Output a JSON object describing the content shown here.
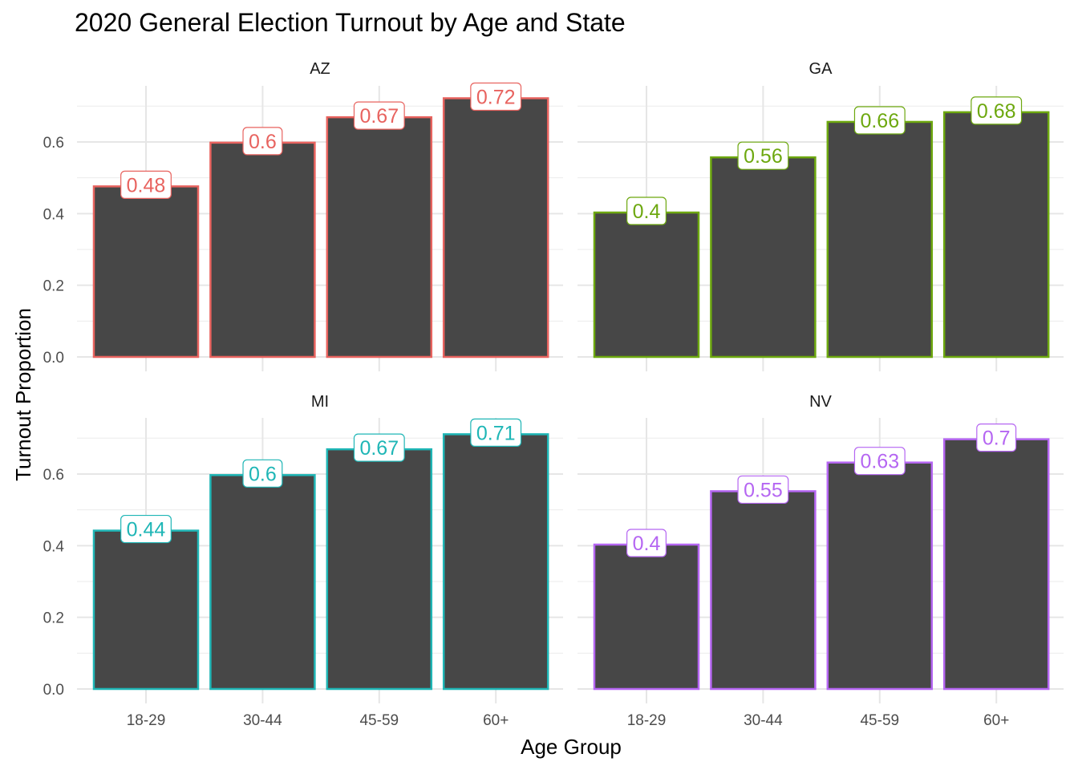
{
  "chart_data": {
    "type": "bar",
    "title": "2020 General Election Turnout by Age and State",
    "xlabel": "Age Group",
    "ylabel": "Turnout Proportion",
    "categories": [
      "18-29",
      "30-44",
      "45-59",
      "60+"
    ],
    "ylim": [
      0,
      0.75
    ],
    "y_ticks": [
      "0.0",
      "0.2",
      "0.4",
      "0.6"
    ],
    "y_tick_values": [
      0,
      0.2,
      0.4,
      0.6
    ],
    "grid": true,
    "legend": "none",
    "bar_fill": "#474747",
    "panels": [
      {
        "name": "AZ",
        "color": "#E8635F",
        "values": [
          0.476,
          0.598,
          0.669,
          0.722
        ],
        "labels": [
          "0.48",
          "0.6",
          "0.67",
          "0.72"
        ]
      },
      {
        "name": "GA",
        "color": "#6DA80F",
        "values": [
          0.403,
          0.557,
          0.656,
          0.683
        ],
        "labels": [
          "0.4",
          "0.56",
          "0.66",
          "0.68"
        ]
      },
      {
        "name": "MI",
        "color": "#1FB6B6",
        "values": [
          0.442,
          0.597,
          0.669,
          0.711
        ],
        "labels": [
          "0.44",
          "0.6",
          "0.67",
          "0.71"
        ]
      },
      {
        "name": "NV",
        "color": "#B566F2",
        "values": [
          0.403,
          0.552,
          0.632,
          0.697
        ],
        "labels": [
          "0.4",
          "0.55",
          "0.63",
          "0.7"
        ]
      }
    ]
  }
}
